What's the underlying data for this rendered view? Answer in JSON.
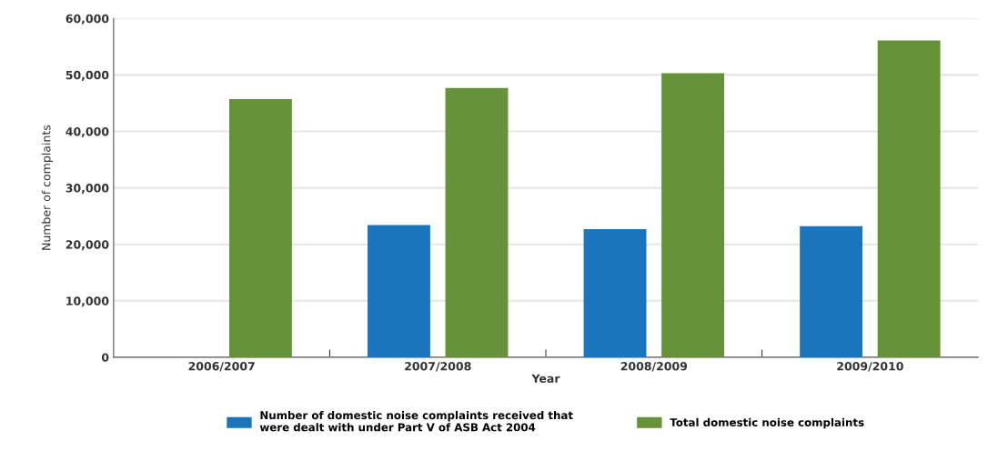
{
  "chart_data": {
    "type": "bar",
    "xlabel": "Year",
    "ylabel": "Number of complaints",
    "categories": [
      "2006/2007",
      "2007/2008",
      "2008/2009",
      "2009/2010"
    ],
    "series": [
      {
        "name": "Number of domestic noise complaints received that\nwere dealt with under Part V of ASB Act 2004",
        "color": "#1a75bc",
        "values": [
          null,
          23400,
          22700,
          23200
        ]
      },
      {
        "name": "Total domestic noise complaints",
        "color": "#66933a",
        "values": [
          45700,
          47700,
          50300,
          56100
        ]
      }
    ],
    "ylim": [
      0,
      60000
    ],
    "yticks": [
      {
        "value": 0,
        "label": "0"
      },
      {
        "value": 10000,
        "label": "10,000"
      },
      {
        "value": 20000,
        "label": "20,000"
      },
      {
        "value": 30000,
        "label": "30,000"
      },
      {
        "value": 40000,
        "label": "40,000"
      },
      {
        "value": 50000,
        "label": "50,000"
      },
      {
        "value": 60000,
        "label": "60,000"
      }
    ],
    "grid": "y",
    "legend": "bottom"
  }
}
